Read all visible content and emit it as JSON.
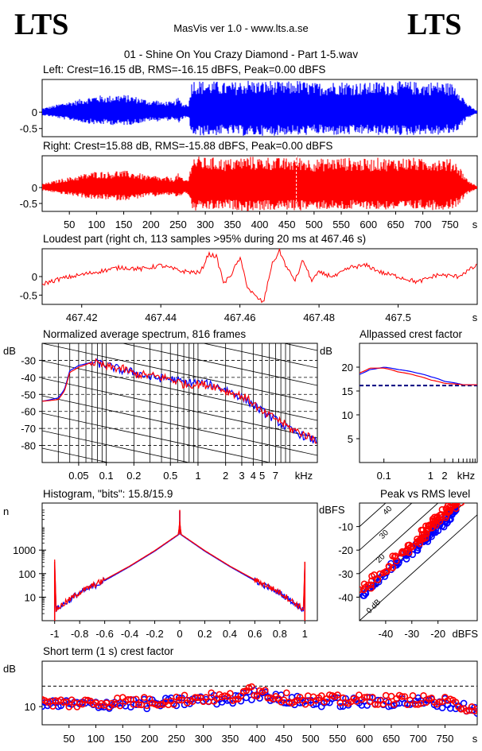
{
  "header": {
    "logo_left": "LTS",
    "logo_right": "LTS",
    "app_title": "MasVis ver 1.0 - www.lts.a.se",
    "file_name": "01 - Shine On You Crazy Diamond - Part 1-5.wav"
  },
  "chart_data": [
    {
      "type": "area",
      "title": "Left: Crest=16.15 dB, RMS=-16.15 dBFS, Peak=0.00 dBFS",
      "y_ticks": [
        "0",
        "-0.5"
      ],
      "ylim": [
        -0.75,
        1.0
      ],
      "color": "#0000ff",
      "envelope_t": [
        0,
        20,
        40,
        60,
        80,
        100,
        120,
        140,
        160,
        180,
        200,
        210,
        220,
        230,
        240,
        250,
        260,
        270,
        275,
        280,
        300,
        320,
        340,
        360,
        380,
        400,
        420,
        440,
        455,
        460,
        465,
        480,
        500,
        520,
        540,
        560,
        580,
        600,
        620,
        640,
        660,
        680,
        700,
        720,
        740,
        750,
        760,
        770,
        780,
        790,
        800
      ],
      "envelope_a": [
        0.12,
        0.2,
        0.3,
        0.36,
        0.45,
        0.52,
        0.5,
        0.55,
        0.52,
        0.45,
        0.35,
        0.4,
        0.3,
        0.35,
        0.3,
        0.45,
        0.25,
        0.3,
        1.0,
        1.0,
        0.95,
        0.95,
        0.9,
        0.95,
        1.0,
        0.95,
        0.98,
        0.92,
        0.95,
        0.9,
        1.0,
        0.95,
        0.9,
        0.92,
        0.95,
        0.95,
        0.92,
        0.9,
        0.95,
        0.92,
        0.95,
        0.95,
        0.9,
        0.95,
        0.92,
        0.9,
        0.85,
        0.6,
        0.3,
        0.15,
        0.05
      ]
    },
    {
      "type": "area",
      "title": "Right: Crest=15.88 dB, RMS=-15.88 dBFS, Peak=0.00 dBFS",
      "y_ticks": [
        "0",
        "-0.5"
      ],
      "ylim": [
        -0.75,
        1.0
      ],
      "color": "#ff0000",
      "x_ticks": [
        "50",
        "100",
        "150",
        "200",
        "250",
        "300",
        "350",
        "400",
        "450",
        "500",
        "550",
        "600",
        "650",
        "700",
        "750"
      ],
      "x_unit": "s",
      "xlim": [
        0,
        800
      ],
      "envelope_t": [
        0,
        20,
        40,
        60,
        80,
        100,
        120,
        140,
        160,
        180,
        200,
        210,
        220,
        230,
        240,
        250,
        260,
        270,
        275,
        280,
        300,
        320,
        340,
        360,
        380,
        400,
        420,
        440,
        455,
        460,
        465,
        480,
        500,
        520,
        540,
        560,
        580,
        600,
        620,
        640,
        660,
        680,
        700,
        720,
        740,
        750,
        760,
        770,
        780,
        790,
        800
      ],
      "envelope_a": [
        0.12,
        0.2,
        0.3,
        0.36,
        0.45,
        0.52,
        0.5,
        0.55,
        0.52,
        0.45,
        0.35,
        0.4,
        0.3,
        0.35,
        0.3,
        0.45,
        0.25,
        0.3,
        1.0,
        1.0,
        0.95,
        0.95,
        0.9,
        0.95,
        1.0,
        0.95,
        0.98,
        0.92,
        0.95,
        0.9,
        1.0,
        0.95,
        0.9,
        0.92,
        0.95,
        0.95,
        0.92,
        0.9,
        0.95,
        0.92,
        0.95,
        0.95,
        0.9,
        0.95,
        0.92,
        0.9,
        0.85,
        0.6,
        0.3,
        0.15,
        0.05
      ],
      "marker_s": 467.46
    },
    {
      "type": "line",
      "title": "Loudest part (right ch, 113 samples >95% during 20 ms at 467.46 s)",
      "y_ticks": [
        "0",
        "-0.5"
      ],
      "ylim": [
        -0.75,
        0.75
      ],
      "x_ticks": [
        "467.42",
        "467.44",
        "467.46",
        "467.48",
        "467.5"
      ],
      "x_unit": "s",
      "xlim": [
        467.41,
        467.52
      ],
      "color": "#ff0000",
      "x": [
        467.41,
        467.415,
        467.42,
        467.425,
        467.43,
        467.435,
        467.44,
        467.445,
        467.45,
        467.452,
        467.454,
        467.456,
        467.458,
        467.46,
        467.462,
        467.464,
        467.466,
        467.468,
        467.47,
        467.472,
        467.474,
        467.476,
        467.478,
        467.48,
        467.484,
        467.488,
        467.492,
        467.496,
        467.5,
        467.505,
        467.51,
        467.515,
        467.52
      ],
      "y": [
        -0.2,
        -0.05,
        0.05,
        0.15,
        0.25,
        0.2,
        0.3,
        0.15,
        0.1,
        0.6,
        0.55,
        -0.2,
        0.1,
        0.5,
        -0.3,
        -0.55,
        -0.7,
        0.3,
        0.7,
        0.2,
        -0.1,
        0.45,
        -0.1,
        0.1,
        0.0,
        0.25,
        0.3,
        0.1,
        0.0,
        -0.15,
        0.05,
        0.0,
        0.3
      ]
    },
    {
      "type": "line",
      "title": "Normalized average spectrum, 816 frames",
      "ylabel": "dB",
      "y_ticks": [
        -30,
        -40,
        -50,
        -60,
        -70,
        -80
      ],
      "ylim": [
        -90,
        -20
      ],
      "x_ticks": [
        "0.05",
        "0.1",
        "0.2",
        "0.5",
        "1",
        "2",
        "3",
        "4",
        "5",
        "7"
      ],
      "x_tick_values": [
        0.05,
        0.1,
        0.2,
        0.5,
        1,
        2,
        3,
        4,
        5,
        7
      ],
      "x_unit": "kHz",
      "xlim": [
        0.02,
        20
      ],
      "series": [
        {
          "color": "#0000ff",
          "x": [
            0.02,
            0.03,
            0.035,
            0.04,
            0.05,
            0.07,
            0.1,
            0.15,
            0.2,
            0.3,
            0.5,
            0.7,
            1,
            1.5,
            2,
            3,
            4,
            5,
            7,
            10,
            15,
            20
          ],
          "y": [
            -54,
            -52,
            -47,
            -36,
            -33,
            -31,
            -33,
            -36,
            -37,
            -40,
            -41,
            -43,
            -43,
            -45,
            -47,
            -52,
            -56,
            -60,
            -65,
            -71,
            -75,
            -78
          ]
        },
        {
          "color": "#ff0000",
          "x": [
            0.02,
            0.03,
            0.035,
            0.04,
            0.05,
            0.07,
            0.1,
            0.15,
            0.2,
            0.3,
            0.5,
            0.7,
            1,
            1.5,
            2,
            3,
            4,
            5,
            7,
            10,
            15,
            20
          ],
          "y": [
            -54,
            -53,
            -48,
            -37,
            -34,
            -31,
            -34,
            -35,
            -38,
            -39,
            -41,
            -44,
            -44,
            -45,
            -48,
            -51,
            -55,
            -61,
            -64,
            -70,
            -74,
            -77
          ]
        }
      ]
    },
    {
      "type": "line",
      "title": "Allpassed crest factor",
      "ylabel": "dB",
      "y_ticks": [
        20,
        15,
        10,
        5
      ],
      "ylim": [
        0,
        25
      ],
      "x_ticks": [
        "0.1",
        "1",
        "2"
      ],
      "x_tick_values": [
        0.1,
        1,
        2
      ],
      "x_unit": "kHz",
      "xlim": [
        0.03,
        10
      ],
      "reference_db": 16.15,
      "series": [
        {
          "color": "#0000ff",
          "x": [
            0.03,
            0.05,
            0.1,
            0.2,
            0.5,
            1,
            2,
            5,
            10
          ],
          "y": [
            18.5,
            19.5,
            20.0,
            19.5,
            18.8,
            18.0,
            17.0,
            16.3,
            16.3
          ]
        },
        {
          "color": "#ff0000",
          "x": [
            0.03,
            0.05,
            0.1,
            0.2,
            0.5,
            1,
            2,
            5,
            10
          ],
          "y": [
            18.8,
            19.8,
            19.8,
            19.0,
            18.2,
            17.3,
            16.6,
            16.3,
            16.3
          ]
        }
      ]
    },
    {
      "type": "line",
      "title": "Histogram, \"bits\": 15.8/15.9",
      "ylabel": "n",
      "y_ticks": [
        "1000",
        "100",
        "10"
      ],
      "y_tick_values": [
        1000,
        100,
        10
      ],
      "ylim": [
        1,
        100000
      ],
      "x_ticks": [
        "-1",
        "-0.8",
        "-0.6",
        "-0.4",
        "-0.2",
        "0",
        "0.2",
        "0.4",
        "0.6",
        "0.8",
        "1"
      ],
      "x_tick_values": [
        -1,
        -0.8,
        -0.6,
        -0.4,
        -0.2,
        0,
        0.2,
        0.4,
        0.6,
        0.8,
        1
      ],
      "xlim": [
        -1.1,
        1.1
      ],
      "series": [
        {
          "color": "#0000ff",
          "x": [
            -1.0,
            -0.99,
            -0.8,
            -0.6,
            -0.4,
            -0.2,
            -0.01,
            0,
            0.01,
            0.2,
            0.4,
            0.6,
            0.8,
            0.99,
            1.0
          ],
          "y": [
            300,
            3,
            15,
            50,
            200,
            900,
            4500,
            15000,
            4500,
            900,
            200,
            50,
            15,
            3,
            300
          ]
        },
        {
          "color": "#ff0000",
          "x": [
            -1.0,
            -0.99,
            -0.8,
            -0.6,
            -0.4,
            -0.2,
            -0.01,
            0,
            0.01,
            0.2,
            0.4,
            0.6,
            0.8,
            0.99,
            1.0
          ],
          "y": [
            320,
            3,
            16,
            55,
            210,
            950,
            4700,
            17000,
            4700,
            950,
            210,
            55,
            16,
            3,
            320
          ]
        }
      ]
    },
    {
      "type": "scatter",
      "title": "Peak vs RMS level",
      "ylabel": "dBFS",
      "xlabel": "dBFS",
      "y_ticks": [
        -10,
        -20,
        -30,
        -40
      ],
      "x_ticks": [
        -40,
        -30,
        -20
      ],
      "xlim": [
        -50,
        -5
      ],
      "ylim": [
        -50,
        0
      ],
      "crest_lines": [
        "0 dB",
        "10",
        "20",
        "30",
        "40"
      ],
      "series": [
        {
          "color": "#0000ff",
          "x": [
            -49,
            -46,
            -43,
            -40,
            -37,
            -35,
            -33,
            -31,
            -29,
            -27,
            -26,
            -25,
            -24,
            -23,
            -22,
            -21,
            -20,
            -19,
            -18,
            -17,
            -16,
            -15,
            -14,
            -13
          ],
          "y": [
            -39,
            -36,
            -33,
            -30,
            -27,
            -25,
            -23,
            -21,
            -19,
            -17,
            -16,
            -15,
            -14,
            -13,
            -12,
            -11,
            -10,
            -9,
            -8,
            -7,
            -6,
            -5,
            -4,
            -3
          ]
        },
        {
          "color": "#ff0000",
          "x": [
            -49,
            -47,
            -44,
            -41,
            -38,
            -36,
            -34,
            -32,
            -30,
            -28,
            -27,
            -26,
            -25,
            -24,
            -23,
            -22,
            -21,
            -20,
            -19,
            -18,
            -17,
            -16,
            -15,
            -14,
            -13,
            -12
          ],
          "y": [
            -37,
            -35,
            -32,
            -29,
            -26,
            -24,
            -22,
            -20,
            -18,
            -16,
            -15,
            -14,
            -12,
            -11,
            -10,
            -9,
            -8,
            -7,
            -6,
            -5,
            -4,
            -3,
            -2,
            -1,
            0,
            0
          ]
        }
      ]
    },
    {
      "type": "scatter",
      "title": "Short term (1 s) crest factor",
      "ylabel": "dB",
      "y_ticks": [
        "10"
      ],
      "y_tick_values": [
        10
      ],
      "ylim": [
        6,
        20
      ],
      "reference_db": 14.5,
      "x_ticks": [
        "50",
        "100",
        "150",
        "200",
        "250",
        "300",
        "350",
        "400",
        "450",
        "500",
        "550",
        "600",
        "650",
        "700",
        "750"
      ],
      "x_tick_values": [
        50,
        100,
        150,
        200,
        250,
        300,
        350,
        400,
        450,
        500,
        550,
        600,
        650,
        700,
        750
      ],
      "x_unit": "s",
      "xlim": [
        0,
        810
      ],
      "series": [
        {
          "color": "#0000ff",
          "x": [
            0,
            50,
            100,
            150,
            200,
            250,
            300,
            350,
            400,
            450,
            500,
            550,
            600,
            650,
            700,
            750,
            800
          ],
          "y": [
            10.5,
            10.5,
            10.5,
            10.8,
            10.5,
            11.0,
            11.5,
            11.5,
            12.5,
            11.5,
            11.0,
            11.0,
            11.0,
            11.0,
            11.0,
            10.8,
            9.5
          ]
        },
        {
          "color": "#ff0000",
          "x": [
            0,
            50,
            100,
            150,
            200,
            250,
            300,
            350,
            400,
            450,
            500,
            550,
            600,
            650,
            700,
            750,
            800
          ],
          "y": [
            10.8,
            10.8,
            10.8,
            11.2,
            11.0,
            11.5,
            12.0,
            12.0,
            13.0,
            12.0,
            11.5,
            11.5,
            11.5,
            11.5,
            11.5,
            11.0,
            9.8
          ]
        }
      ]
    }
  ]
}
